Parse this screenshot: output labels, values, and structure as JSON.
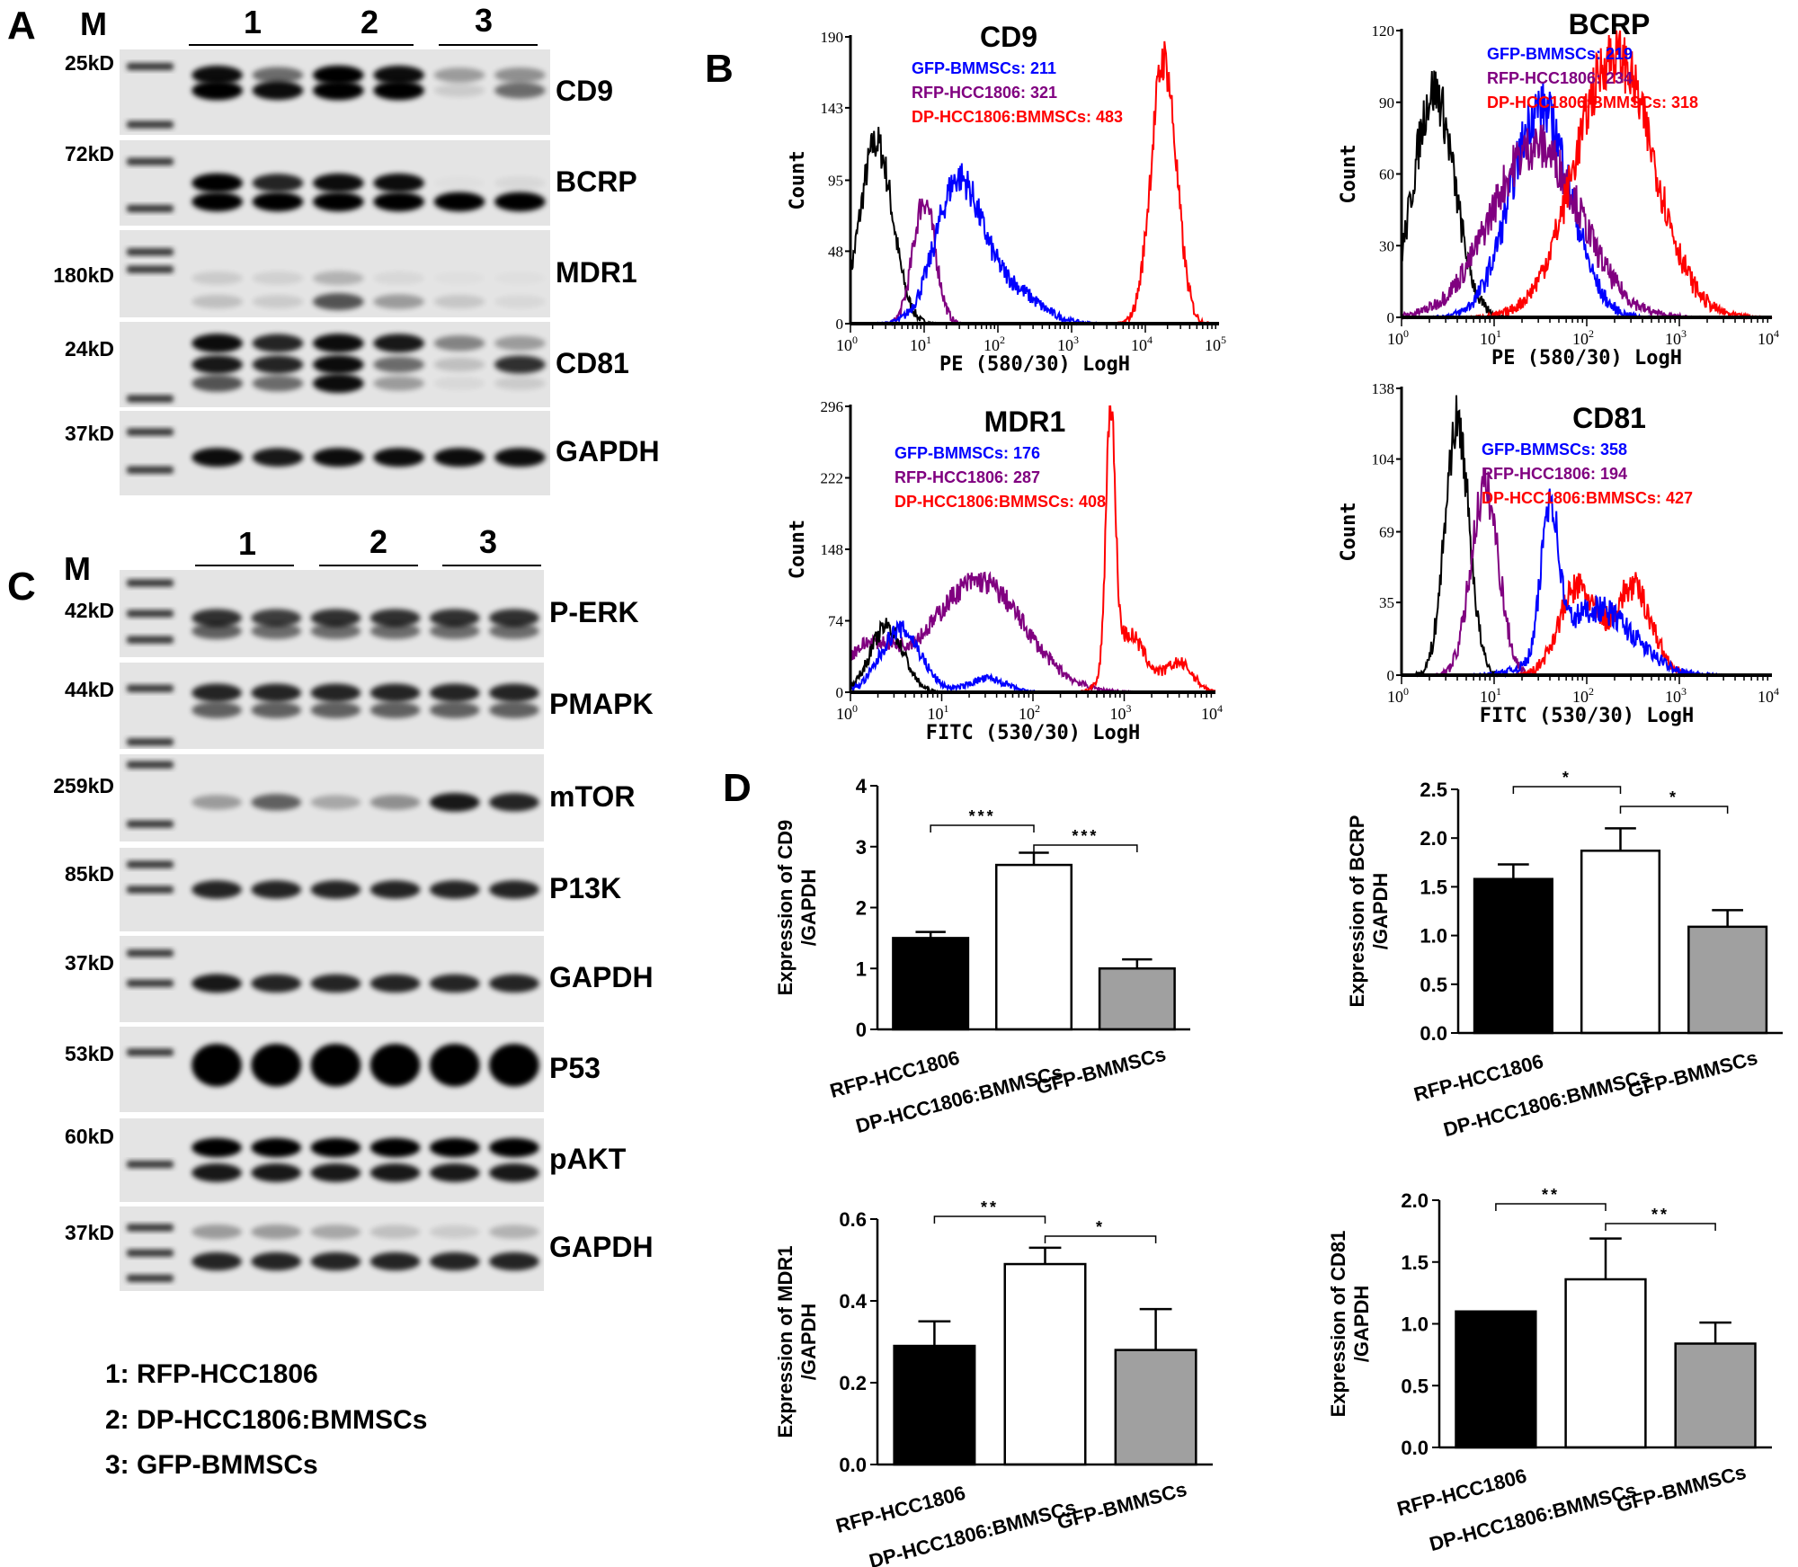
{
  "panels": {
    "a": "A",
    "b": "B",
    "c": "C",
    "d": "D"
  },
  "panel_a": {
    "marker": "M",
    "lanes": [
      "1",
      "2",
      "3"
    ],
    "blots": [
      {
        "name": "CD9",
        "mw": "25kD",
        "bands": [
          [
            0.9,
            0.5,
            0.95,
            0.9,
            0.3,
            0.35
          ],
          [
            0.95,
            0.9,
            0.95,
            0.95,
            0.1,
            0.5
          ]
        ]
      },
      {
        "name": "BCRP",
        "mw": "72kD",
        "bands": [
          [
            0.95,
            0.8,
            0.9,
            0.9,
            0.02,
            0.05
          ],
          [
            0.95,
            0.95,
            0.95,
            0.95,
            0.95,
            0.95
          ]
        ]
      },
      {
        "name": "MDR1",
        "mw": "180kD",
        "bands": [
          [
            0.1,
            0.08,
            0.2,
            0.05,
            0.02,
            0.02
          ],
          [
            0.15,
            0.1,
            0.6,
            0.3,
            0.12,
            0.05
          ]
        ]
      },
      {
        "name": "CD81",
        "mw": "24kD",
        "bands": [
          [
            0.9,
            0.8,
            0.9,
            0.85,
            0.4,
            0.3
          ],
          [
            0.85,
            0.8,
            0.9,
            0.5,
            0.15,
            0.75
          ],
          [
            0.6,
            0.5,
            0.9,
            0.3,
            0.05,
            0.1
          ]
        ]
      },
      {
        "name": "GAPDH",
        "mw": "37kD",
        "bands": [
          [
            0.9,
            0.85,
            0.9,
            0.9,
            0.9,
            0.9
          ]
        ]
      }
    ]
  },
  "panel_c": {
    "marker": "M",
    "lanes": [
      "1",
      "2",
      "3"
    ],
    "blots": [
      {
        "name": "P-ERK",
        "mw": "42kD",
        "bands": [
          [
            0.75,
            0.7,
            0.75,
            0.75,
            0.75,
            0.75
          ],
          [
            0.55,
            0.5,
            0.5,
            0.5,
            0.5,
            0.5
          ]
        ]
      },
      {
        "name": "PMAPK",
        "mw": "44kD",
        "bands": [
          [
            0.8,
            0.8,
            0.8,
            0.8,
            0.8,
            0.8
          ],
          [
            0.55,
            0.55,
            0.55,
            0.55,
            0.55,
            0.55
          ]
        ]
      },
      {
        "name": "mTOR",
        "mw": "259kD",
        "bands": [
          [
            0.3,
            0.55,
            0.25,
            0.35,
            0.85,
            0.8
          ]
        ]
      },
      {
        "name": "P13K",
        "mw": "85kD",
        "bands": [
          [
            0.8,
            0.8,
            0.8,
            0.8,
            0.8,
            0.8
          ]
        ]
      },
      {
        "name": "GAPDH",
        "mw": "37kD",
        "bands": [
          [
            0.85,
            0.8,
            0.8,
            0.8,
            0.8,
            0.8
          ]
        ]
      },
      {
        "name": "P53",
        "mw": "53kD",
        "bands": [
          [
            1,
            1,
            1,
            1,
            1,
            1
          ]
        ]
      },
      {
        "name": "pAKT",
        "mw": "60kD",
        "bands": [
          [
            0.95,
            0.95,
            0.95,
            0.95,
            0.95,
            0.95
          ],
          [
            0.85,
            0.85,
            0.85,
            0.85,
            0.85,
            0.85
          ]
        ]
      },
      {
        "name": "GAPDH",
        "mw": "37kD",
        "bands": [
          [
            0.3,
            0.3,
            0.25,
            0.15,
            0.1,
            0.2
          ],
          [
            0.8,
            0.8,
            0.8,
            0.8,
            0.8,
            0.8
          ]
        ]
      }
    ]
  },
  "legend": [
    "1: RFP-HCC1806",
    "2: DP-HCC1806:BMMSCs",
    "3: GFP-BMMSCs"
  ],
  "colors": {
    "control": "#000000",
    "gfp": "#0000ff",
    "rfp": "#800080",
    "dp": "#ff0000",
    "bar_rfp": "#000000",
    "bar_dp": "#ffffff",
    "bar_gfp": "#a0a0a0"
  },
  "chart_data": [
    {
      "type": "histogram",
      "title": "CD9",
      "xlabel": "PE (580/30) LogH",
      "ylabel": "Count",
      "xscale": "log",
      "xlim": [
        1,
        100000
      ],
      "x_ticks": [
        "0",
        "1",
        "2",
        "3",
        "4",
        "5"
      ],
      "ylim": [
        0,
        190
      ],
      "y_ticks": [
        0,
        48,
        95,
        143,
        190
      ],
      "stats": [
        {
          "label": "GFP-BMMSCs: 211",
          "series": "gfp"
        },
        {
          "label": "RFP-HCC1806: 321",
          "series": "rfp"
        },
        {
          "label": "DP-HCC1806:BMMSCs: 483",
          "series": "dp"
        }
      ],
      "series": [
        {
          "key": "control",
          "peaks": [
            {
              "center_log10": 0.35,
              "count": 120,
              "sd_log10": 0.22
            }
          ]
        },
        {
          "key": "rfp",
          "peaks": [
            {
              "center_log10": 1.0,
              "count": 82,
              "sd_log10": 0.15
            }
          ]
        },
        {
          "key": "gfp",
          "peaks": [
            {
              "center_log10": 1.45,
              "count": 90,
              "sd_log10": 0.3
            },
            {
              "center_log10": 2.1,
              "count": 25,
              "sd_log10": 0.4
            }
          ]
        },
        {
          "key": "dp",
          "peaks": [
            {
              "center_log10": 4.25,
              "count": 175,
              "sd_log10": 0.17
            }
          ]
        }
      ]
    },
    {
      "type": "histogram",
      "title": "BCRP",
      "xlabel": "PE (580/30) LogH",
      "ylabel": "Count",
      "xscale": "log",
      "xlim": [
        1,
        10000
      ],
      "x_ticks": [
        "0",
        "1",
        "2",
        "3",
        "4"
      ],
      "ylim": [
        0,
        120
      ],
      "y_ticks": [
        0,
        30,
        60,
        90,
        120
      ],
      "stats": [
        {
          "label": "GFP-BMMSCs: 219",
          "series": "gfp"
        },
        {
          "label": "RFP-HCC1806: 234",
          "series": "rfp"
        },
        {
          "label": "DP-HCC1806:BMMSCs: 318",
          "series": "dp"
        }
      ],
      "series": [
        {
          "key": "control",
          "peaks": [
            {
              "center_log10": 0.35,
              "count": 95,
              "sd_log10": 0.22
            }
          ]
        },
        {
          "key": "gfp",
          "peaks": [
            {
              "center_log10": 1.5,
              "count": 88,
              "sd_log10": 0.32
            }
          ]
        },
        {
          "key": "rfp",
          "peaks": [
            {
              "center_log10": 1.45,
              "count": 72,
              "sd_log10": 0.48
            }
          ]
        },
        {
          "key": "dp",
          "peaks": [
            {
              "center_log10": 2.3,
              "count": 110,
              "sd_log10": 0.42
            }
          ]
        }
      ]
    },
    {
      "type": "histogram",
      "title": "MDR1",
      "xlabel": "FITC (530/30) LogH",
      "ylabel": "Count",
      "xscale": "log",
      "xlim": [
        1,
        10000
      ],
      "x_ticks": [
        "0",
        "1",
        "2",
        "3",
        "4"
      ],
      "ylim": [
        0,
        296
      ],
      "y_ticks": [
        0,
        74,
        148,
        222,
        296
      ],
      "stats": [
        {
          "label": "GFP-BMMSCs: 176",
          "series": "gfp"
        },
        {
          "label": "RFP-HCC1806: 287",
          "series": "rfp"
        },
        {
          "label": "DP-HCC1806:BMMSCs: 408",
          "series": "dp"
        }
      ],
      "series": [
        {
          "key": "rfp",
          "peaks": [
            {
              "center_log10": 1.4,
              "count": 115,
              "sd_log10": 0.5
            },
            {
              "center_log10": 0.2,
              "count": 45,
              "sd_log10": 0.3
            }
          ]
        },
        {
          "key": "control",
          "peaks": [
            {
              "center_log10": 0.4,
              "count": 68,
              "sd_log10": 0.18
            }
          ]
        },
        {
          "key": "gfp",
          "peaks": [
            {
              "center_log10": 0.55,
              "count": 65,
              "sd_log10": 0.22
            },
            {
              "center_log10": 1.5,
              "count": 14,
              "sd_log10": 0.2
            }
          ]
        },
        {
          "key": "dp",
          "peaks": [
            {
              "center_log10": 2.85,
              "count": 270,
              "sd_log10": 0.05
            },
            {
              "center_log10": 3.05,
              "count": 60,
              "sd_log10": 0.18
            },
            {
              "center_log10": 3.6,
              "count": 30,
              "sd_log10": 0.15
            }
          ]
        }
      ]
    },
    {
      "type": "histogram",
      "title": "CD81",
      "xlabel": "FITC (530/30) LogH",
      "ylabel": "Count",
      "xscale": "log",
      "xlim": [
        1,
        10000
      ],
      "x_ticks": [
        "0",
        "1",
        "2",
        "3",
        "4"
      ],
      "ylim": [
        0,
        138
      ],
      "y_ticks": [
        0,
        35,
        69,
        104,
        138
      ],
      "stats": [
        {
          "label": "GFP-BMMSCs: 358",
          "series": "gfp"
        },
        {
          "label": "RFP-HCC1806: 194",
          "series": "rfp"
        },
        {
          "label": "DP-HCC1806:BMMSCs: 427",
          "series": "dp"
        }
      ],
      "series": [
        {
          "key": "control",
          "peaks": [
            {
              "center_log10": 0.6,
              "count": 122,
              "sd_log10": 0.13
            }
          ]
        },
        {
          "key": "rfp",
          "peaks": [
            {
              "center_log10": 0.9,
              "count": 90,
              "sd_log10": 0.15
            }
          ]
        },
        {
          "key": "dp",
          "peaks": [
            {
              "center_log10": 1.9,
              "count": 42,
              "sd_log10": 0.2
            },
            {
              "center_log10": 2.5,
              "count": 42,
              "sd_log10": 0.2
            }
          ]
        },
        {
          "key": "gfp",
          "peaks": [
            {
              "center_log10": 1.6,
              "count": 72,
              "sd_log10": 0.09
            },
            {
              "center_log10": 2.1,
              "count": 32,
              "sd_log10": 0.4
            }
          ]
        }
      ]
    },
    {
      "type": "bar",
      "ylabel": [
        "Expression of CD9",
        "/GAPDH"
      ],
      "ylim": [
        0,
        4
      ],
      "y_ticks": [
        "0",
        "1",
        "2",
        "3",
        "4"
      ],
      "categories": [
        "RFP-HCC1806",
        "DP-HCC1806:BMMSCs",
        "GFP-BMMSCs"
      ],
      "values": [
        1.5,
        2.7,
        1.0
      ],
      "errors": [
        0.1,
        0.2,
        0.15
      ],
      "significance": [
        {
          "from": 0,
          "to": 1,
          "label": "***"
        },
        {
          "from": 1,
          "to": 2,
          "label": "***"
        }
      ]
    },
    {
      "type": "bar",
      "ylabel": [
        "Expression of BCRP",
        "/GAPDH"
      ],
      "ylim": [
        0,
        2.5
      ],
      "y_ticks": [
        "0.0",
        "0.5",
        "1.0",
        "1.5",
        "2.0",
        "2.5"
      ],
      "categories": [
        "RFP-HCC1806",
        "DP-HCC1806:BMMSCs",
        "GFP-BMMSCs"
      ],
      "values": [
        1.58,
        1.87,
        1.09
      ],
      "errors": [
        0.15,
        0.23,
        0.17
      ],
      "significance": [
        {
          "from": 0,
          "to": 1,
          "label": "*"
        },
        {
          "from": 1,
          "to": 2,
          "label": "*"
        }
      ]
    },
    {
      "type": "bar",
      "ylabel": [
        "Expression of MDR1",
        "/GAPDH"
      ],
      "ylim": [
        0,
        0.6
      ],
      "y_ticks": [
        "0.0",
        "0.2",
        "0.4",
        "0.6"
      ],
      "categories": [
        "RFP-HCC1806",
        "DP-HCC1806:BMMSCs",
        "GFP-BMMSCs"
      ],
      "values": [
        0.29,
        0.49,
        0.28
      ],
      "errors": [
        0.06,
        0.04,
        0.1
      ],
      "significance": [
        {
          "from": 0,
          "to": 1,
          "label": "**"
        },
        {
          "from": 1,
          "to": 2,
          "label": "*"
        }
      ]
    },
    {
      "type": "bar",
      "ylabel": [
        "Expression of CD81",
        "/GAPDH"
      ],
      "ylim": [
        0,
        2.0
      ],
      "y_ticks": [
        "0.0",
        "0.5",
        "1.0",
        "1.5",
        "2.0"
      ],
      "categories": [
        "RFP-HCC1806",
        "DP-HCC1806:BMMSCs",
        "GFP-BMMSCs"
      ],
      "values": [
        1.1,
        1.36,
        0.84
      ],
      "errors": [
        0.0,
        0.33,
        0.17
      ],
      "significance": [
        {
          "from": 0,
          "to": 1,
          "label": "**"
        },
        {
          "from": 1,
          "to": 2,
          "label": "**"
        }
      ]
    }
  ]
}
